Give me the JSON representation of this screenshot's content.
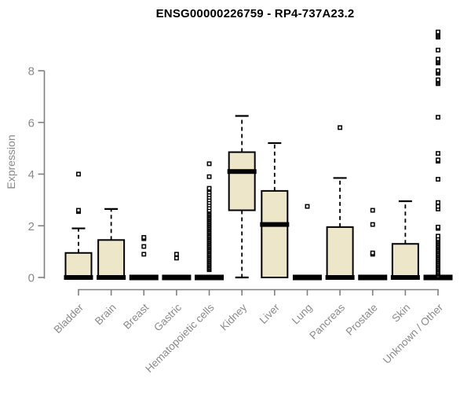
{
  "chart_data": {
    "type": "boxplot",
    "title": "ENSG00000226759 - RP4-737A23.2",
    "ylabel": "Expression",
    "xlabel": "",
    "ylim": [
      0,
      9.6
    ],
    "yticks": [
      0,
      2,
      4,
      6,
      8
    ],
    "grid": false,
    "legend": "none",
    "colors": {
      "box_fill": "#ede6c8",
      "box_stroke": "#000000",
      "median": "#000000",
      "outlier_stroke": "#000000",
      "axis_line": "#808080",
      "axis_text": "#8a8a8a",
      "title_text": "#000000",
      "background": "#ffffff"
    },
    "categories": [
      "Bladder",
      "Brain",
      "Breast",
      "Gastric",
      "Hematopoietic cells",
      "Kidney",
      "Liver",
      "Lung",
      "Pancreas",
      "Prostate",
      "Skin",
      "Unknown / Other"
    ],
    "series": [
      {
        "category": "Bladder",
        "q1": 0,
        "median": 0,
        "q3": 0.95,
        "whisker_low": 0,
        "whisker_high": 1.9,
        "outliers": [
          2.55,
          2.6,
          4.0
        ]
      },
      {
        "category": "Brain",
        "q1": 0,
        "median": 0,
        "q3": 1.45,
        "whisker_low": 0,
        "whisker_high": 2.65,
        "outliers": []
      },
      {
        "category": "Breast",
        "q1": 0,
        "median": 0,
        "q3": 0,
        "whisker_low": 0,
        "whisker_high": 0,
        "outliers": [
          0.9,
          1.2,
          1.5,
          1.55
        ]
      },
      {
        "category": "Gastric",
        "q1": 0,
        "median": 0,
        "q3": 0,
        "whisker_low": 0,
        "whisker_high": 0,
        "outliers": [
          0.75,
          0.9
        ]
      },
      {
        "category": "Hematopoietic cells",
        "q1": 0,
        "median": 0,
        "q3": 0,
        "whisker_low": 0,
        "whisker_high": 0,
        "outliers": [
          0.3,
          0.35,
          0.4,
          0.45,
          0.5,
          0.55,
          0.6,
          0.65,
          0.7,
          0.75,
          0.8,
          0.85,
          0.9,
          0.95,
          1.0,
          1.05,
          1.1,
          1.15,
          1.2,
          1.25,
          1.3,
          1.35,
          1.4,
          1.45,
          1.5,
          1.55,
          1.6,
          1.65,
          1.7,
          1.75,
          1.8,
          1.85,
          1.9,
          1.95,
          2.0,
          2.05,
          2.1,
          2.15,
          2.2,
          2.25,
          2.3,
          2.35,
          2.4,
          2.45,
          2.5,
          2.55,
          2.6,
          2.7,
          2.8,
          2.9,
          3.0,
          3.1,
          3.2,
          3.3,
          3.4,
          3.45,
          3.9,
          4.4
        ]
      },
      {
        "category": "Kidney",
        "q1": 2.6,
        "median": 4.1,
        "q3": 4.85,
        "whisker_low": 0,
        "whisker_high": 6.25,
        "outliers": []
      },
      {
        "category": "Liver",
        "q1": 0,
        "median": 2.05,
        "q3": 3.35,
        "whisker_low": 0,
        "whisker_high": 5.2,
        "outliers": []
      },
      {
        "category": "Lung",
        "q1": 0,
        "median": 0,
        "q3": 0,
        "whisker_low": 0,
        "whisker_high": 0,
        "outliers": [
          2.75
        ]
      },
      {
        "category": "Pancreas",
        "q1": 0,
        "median": 0,
        "q3": 1.95,
        "whisker_low": 0,
        "whisker_high": 3.85,
        "outliers": [
          5.8
        ]
      },
      {
        "category": "Prostate",
        "q1": 0,
        "median": 0,
        "q3": 0,
        "whisker_low": 0,
        "whisker_high": 0,
        "outliers": [
          0.9,
          0.95,
          2.05,
          2.6
        ]
      },
      {
        "category": "Skin",
        "q1": 0,
        "median": 0,
        "q3": 1.3,
        "whisker_low": 0,
        "whisker_high": 2.95,
        "outliers": []
      },
      {
        "category": "Unknown / Other",
        "q1": 0,
        "median": 0,
        "q3": 0,
        "whisker_low": 0,
        "whisker_high": 0,
        "outliers": [
          0.05,
          0.1,
          0.15,
          0.2,
          0.25,
          0.3,
          0.35,
          0.4,
          0.45,
          0.5,
          0.55,
          0.6,
          0.65,
          0.7,
          0.75,
          0.8,
          0.85,
          0.9,
          0.95,
          1.0,
          1.05,
          1.1,
          1.15,
          1.2,
          1.25,
          1.3,
          1.35,
          1.4,
          1.45,
          1.5,
          1.6,
          1.9,
          1.95,
          2.65,
          2.75,
          2.9,
          3.8,
          4.5,
          4.55,
          4.8,
          6.2,
          7.5,
          7.55,
          7.6,
          7.65,
          7.9,
          7.95,
          8.0,
          8.3,
          8.35,
          8.4,
          8.45,
          8.8,
          9.3,
          9.35,
          9.4,
          9.45,
          9.5
        ]
      }
    ]
  }
}
